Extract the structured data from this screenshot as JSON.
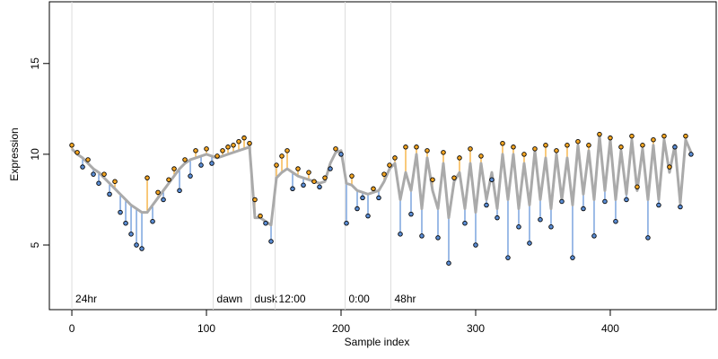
{
  "chart_data": {
    "type": "scatter",
    "x_label": "Sample index",
    "y_label": "Expression",
    "xlim": [
      -16.7,
      478.7
    ],
    "ylim": [
      1.44,
      18.4
    ],
    "xticks": [
      0,
      100,
      200,
      300,
      400
    ],
    "yticks": [
      5,
      10,
      15
    ],
    "fit_color": "#aaaaaa",
    "above_color": "#f5a623",
    "below_color": "#5b8ed6",
    "point_color": "#000000",
    "event_color": "#dddddd",
    "event_label_color": "#aaaaaa",
    "events": [
      {
        "x": 0,
        "label": "24hr"
      },
      {
        "x": 105,
        "label": "dawn"
      },
      {
        "x": 133,
        "label": "dusk"
      },
      {
        "x": 151,
        "label": "12:00"
      },
      {
        "x": 203,
        "label": "0:00"
      },
      {
        "x": 237,
        "label": "48hr"
      }
    ],
    "x": [
      0,
      4,
      8,
      12,
      16,
      20,
      24,
      28,
      32,
      36,
      40,
      44,
      48,
      52,
      56,
      60,
      64,
      68,
      72,
      76,
      80,
      84,
      88,
      92,
      96,
      100,
      104,
      108,
      112,
      116,
      120,
      124,
      128,
      132,
      136,
      140,
      144,
      148,
      152,
      156,
      160,
      164,
      168,
      172,
      176,
      180,
      184,
      188,
      192,
      196,
      200,
      204,
      208,
      212,
      216,
      220,
      224,
      228,
      232,
      236,
      240,
      244,
      248,
      252,
      256,
      260,
      264,
      268,
      272,
      276,
      280,
      284,
      288,
      292,
      296,
      300,
      304,
      308,
      312,
      316,
      320,
      324,
      328,
      332,
      336,
      340,
      344,
      348,
      352,
      356,
      360,
      364,
      368,
      372,
      376,
      380,
      384,
      388,
      392,
      396,
      400,
      404,
      408,
      412,
      416,
      420,
      424,
      428,
      432,
      436,
      440,
      444,
      448,
      452,
      456,
      460
    ],
    "fitted": [
      10.3,
      10.0,
      9.8,
      9.5,
      9.2,
      9.0,
      8.7,
      8.4,
      8.1,
      7.8,
      7.5,
      7.2,
      7.0,
      6.8,
      6.8,
      7.2,
      7.6,
      8.0,
      8.4,
      8.8,
      9.2,
      9.5,
      9.7,
      9.8,
      9.9,
      10.0,
      9.9,
      9.8,
      9.9,
      10.0,
      10.1,
      10.2,
      10.3,
      10.4,
      6.5,
      6.5,
      6.3,
      6.1,
      8.7,
      9.0,
      9.2,
      9.0,
      8.8,
      8.7,
      8.6,
      8.5,
      8.4,
      8.5,
      9.5,
      10.1,
      10.2,
      8.4,
      8.3,
      8.0,
      7.9,
      7.8,
      7.9,
      8.0,
      8.5,
      9.2,
      9.5,
      7.5,
      9.0,
      8.0,
      10.0,
      7.0,
      9.8,
      8.0,
      7.0,
      9.5,
      6.5,
      8.5,
      9.0,
      7.0,
      9.5,
      6.8,
      9.5,
      7.5,
      9.0,
      7.0,
      10.0,
      7.5,
      10.0,
      7.0,
      9.5,
      7.2,
      10.2,
      7.5,
      9.8,
      7.0,
      10.0,
      7.5,
      9.8,
      7.2,
      10.5,
      7.8,
      10.2,
      7.5,
      11.0,
      8.0,
      10.8,
      7.5,
      10.2,
      7.8,
      10.8,
      8.0,
      10.3,
      7.5,
      10.5,
      7.5,
      10.8,
      9.0,
      10.5,
      7.3,
      10.8,
      10.1
    ],
    "observed": [
      10.5,
      10.1,
      9.3,
      9.7,
      8.9,
      8.4,
      8.9,
      7.8,
      8.5,
      6.8,
      6.2,
      5.6,
      5.0,
      4.8,
      8.7,
      6.3,
      7.9,
      7.5,
      8.6,
      9.2,
      8.0,
      9.7,
      8.8,
      10.2,
      9.4,
      10.3,
      9.5,
      9.9,
      10.2,
      10.4,
      10.5,
      10.7,
      10.9,
      10.6,
      7.5,
      6.6,
      6.2,
      5.2,
      9.4,
      9.9,
      10.2,
      8.1,
      9.2,
      8.3,
      9.0,
      8.5,
      8.2,
      8.7,
      9.2,
      10.3,
      10.0,
      6.2,
      8.8,
      7.0,
      7.6,
      6.6,
      8.1,
      7.6,
      8.9,
      9.4,
      9.8,
      5.6,
      10.4,
      6.7,
      10.4,
      5.5,
      10.2,
      8.6,
      5.4,
      10.1,
      4.0,
      8.7,
      9.8,
      6.2,
      10.3,
      5.0,
      9.9,
      7.2,
      8.6,
      6.5,
      10.6,
      4.3,
      10.4,
      6.0,
      10.0,
      5.1,
      10.3,
      6.4,
      10.5,
      6.0,
      10.2,
      7.4,
      10.5,
      4.3,
      10.7,
      7.0,
      10.5,
      5.5,
      11.1,
      7.4,
      10.9,
      6.3,
      10.4,
      7.5,
      11.0,
      8.2,
      10.5,
      5.4,
      10.8,
      7.2,
      11.0,
      9.3,
      10.4,
      7.1,
      11.0,
      10.0
    ]
  }
}
